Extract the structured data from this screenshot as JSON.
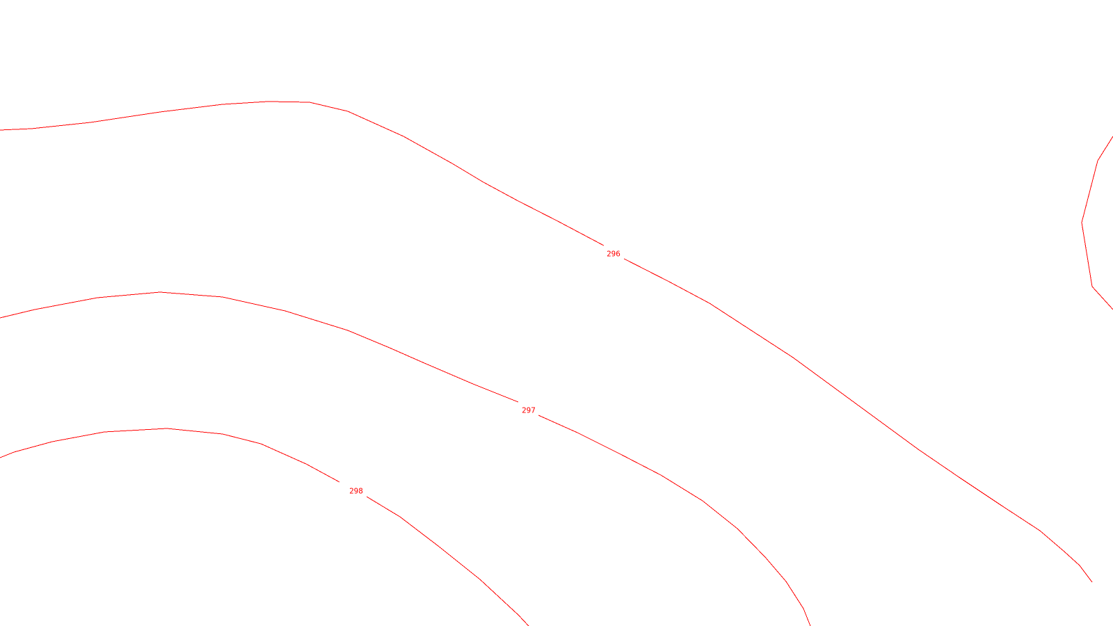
{
  "map": {
    "line_color": "#ff0000",
    "background": "#ffffff",
    "contours": [
      {
        "name": "contour-296",
        "label": "296"
      },
      {
        "name": "contour-297",
        "label": "297"
      },
      {
        "name": "contour-298",
        "label": "298"
      },
      {
        "name": "contour-right-edge",
        "label": ""
      }
    ]
  }
}
